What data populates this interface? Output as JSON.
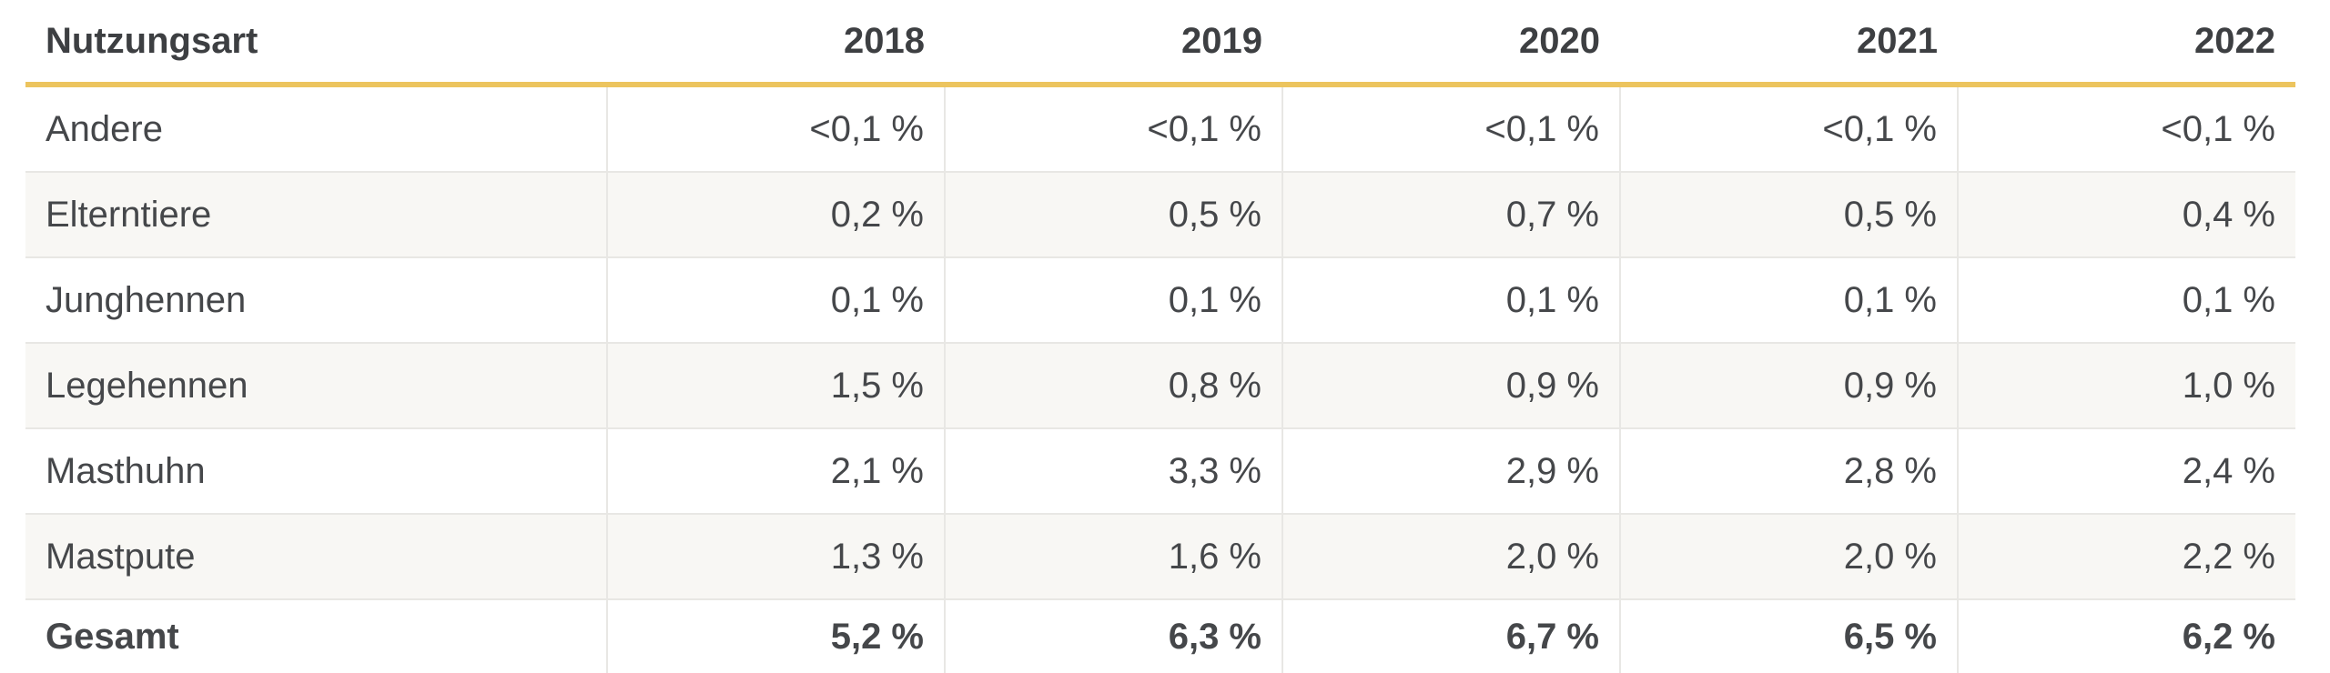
{
  "chart_data": {
    "type": "table",
    "columns": [
      "Nutzungsart",
      "2018",
      "2019",
      "2020",
      "2021",
      "2022"
    ],
    "rows": [
      {
        "label": "Andere",
        "values": [
          "<0,1 %",
          "<0,1 %",
          "<0,1 %",
          "<0,1 %",
          "<0,1 %"
        ],
        "total": false
      },
      {
        "label": "Elterntiere",
        "values": [
          "0,2 %",
          "0,5 %",
          "0,7 %",
          "0,5 %",
          "0,4 %"
        ],
        "total": false
      },
      {
        "label": "Junghennen",
        "values": [
          "0,1 %",
          "0,1 %",
          "0,1 %",
          "0,1 %",
          "0,1 %"
        ],
        "total": false
      },
      {
        "label": "Legehennen",
        "values": [
          "1,5 %",
          "0,8 %",
          "0,9 %",
          "0,9 %",
          "1,0 %"
        ],
        "total": false
      },
      {
        "label": "Masthuhn",
        "values": [
          "2,1 %",
          "3,3 %",
          "2,9 %",
          "2,8 %",
          "2,4 %"
        ],
        "total": false
      },
      {
        "label": "Mastpute",
        "values": [
          "1,3 %",
          "1,6 %",
          "2,0 %",
          "2,0 %",
          "2,2 %"
        ],
        "total": false
      },
      {
        "label": "Gesamt",
        "values": [
          "5,2 %",
          "6,3 %",
          "6,7 %",
          "6,5 %",
          "6,2 %"
        ],
        "total": true
      }
    ],
    "layout_hints": {
      "striped_rows": [
        "Elterntiere",
        "Legehennen",
        "Mastpute"
      ],
      "header_underline": "accent",
      "value_alignment": "right"
    }
  },
  "colors": {
    "accent": "#ecc45e",
    "stripe": "#f8f7f4",
    "divider": "#e8e7e4",
    "header_text": "#3d3f42",
    "body_text": "#45474a"
  }
}
